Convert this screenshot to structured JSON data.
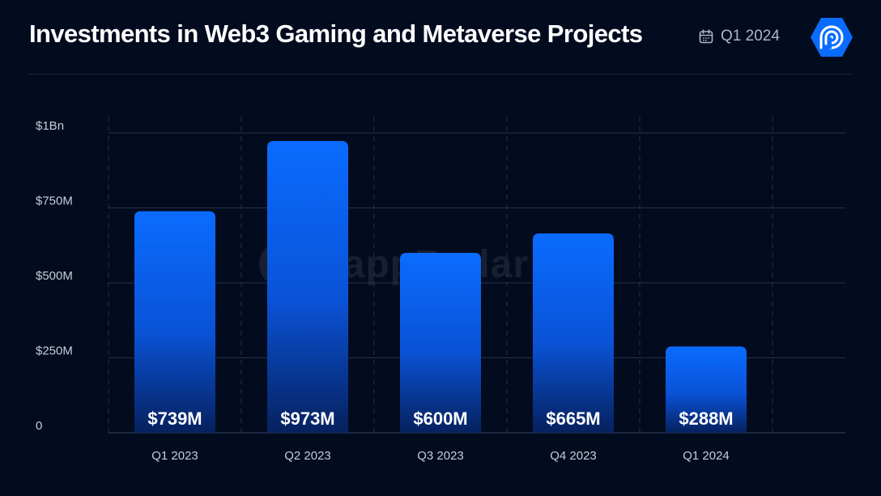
{
  "header": {
    "title": "Investments in Web3 Gaming and Metaverse Projects",
    "date_label": "Q1 2024",
    "date_icon": "calendar-icon",
    "logo_icon": "dapp-radar-logo-icon"
  },
  "watermark": {
    "text": "DappRadar"
  },
  "colors": {
    "background": "#030b1f",
    "bar_top": "#0a6cff",
    "bar_bottom": "#06215e",
    "grid": "#26304a",
    "tick_text": "#c6ccd8",
    "logo": "#0a6cff"
  },
  "chart_data": {
    "type": "bar",
    "categories": [
      "Q1 2023",
      "Q2 2023",
      "Q3 2023",
      "Q4 2023",
      "Q1 2024"
    ],
    "values": [
      739,
      973,
      600,
      665,
      288
    ],
    "data_labels": [
      "$739M",
      "$973M",
      "$600M",
      "$665M",
      "$288M"
    ],
    "unit": "USD millions",
    "title": "Investments in Web3 Gaming and Metaverse Projects",
    "xlabel": "",
    "ylabel": "",
    "ylim": [
      0,
      1000
    ],
    "yticks": [
      0,
      250,
      500,
      750,
      1000
    ],
    "ytick_labels": [
      "0",
      "$250M",
      "$500M",
      "$750M",
      "$1Bn"
    ],
    "grid": true,
    "legend": "none"
  }
}
